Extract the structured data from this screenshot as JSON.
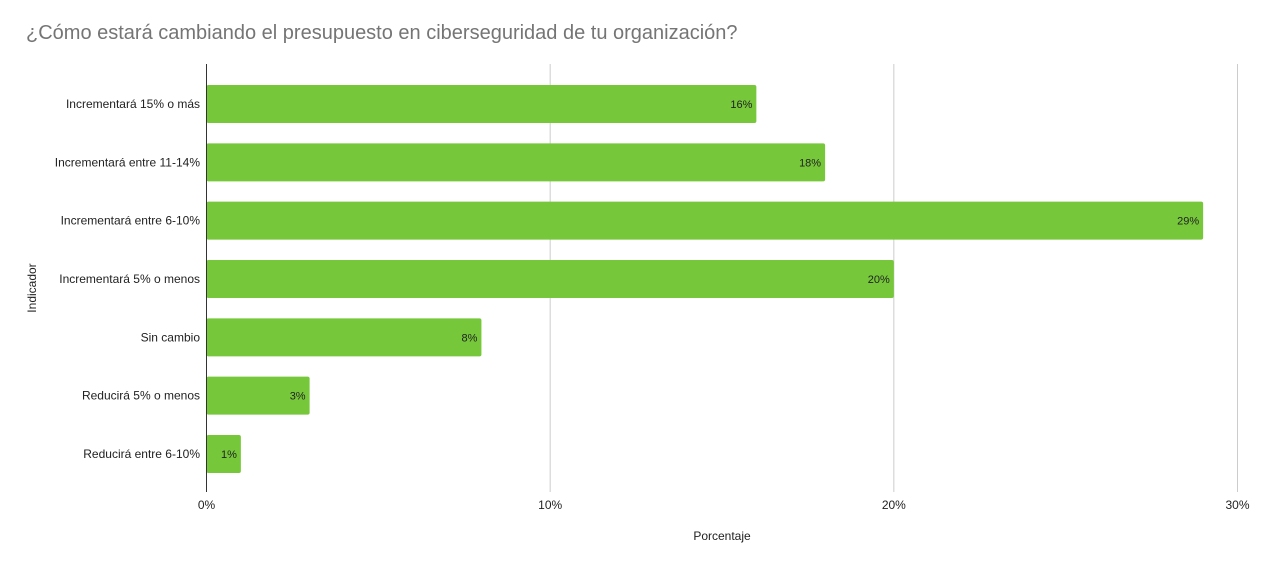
{
  "chart_data": {
    "type": "bar",
    "orientation": "horizontal",
    "title": "¿Cómo estará cambiando el presupuesto en ciberseguridad de tu organización?",
    "xlabel": "Porcentaje",
    "ylabel": "Indicador",
    "categories": [
      "Incrementará 15% o más",
      "Incrementará entre 11-14%",
      "Incrementará entre 6-10%",
      "Incrementará 5% o menos",
      "Sin cambio",
      "Reducirá 5% o menos",
      "Reducirá entre 6-10%"
    ],
    "values": [
      16,
      18,
      29,
      20,
      8,
      3,
      1
    ],
    "data_labels": [
      "16%",
      "18%",
      "29%",
      "20%",
      "8%",
      "3%",
      "1%"
    ],
    "xlim": [
      0,
      30
    ],
    "xticks": [
      0,
      10,
      20,
      30
    ],
    "xtick_labels": [
      "0%",
      "10%",
      "20%",
      "30%"
    ],
    "grid": true,
    "bar_color": "#76c83a",
    "grid_color": "#cccccc",
    "title_color": "#757575"
  }
}
